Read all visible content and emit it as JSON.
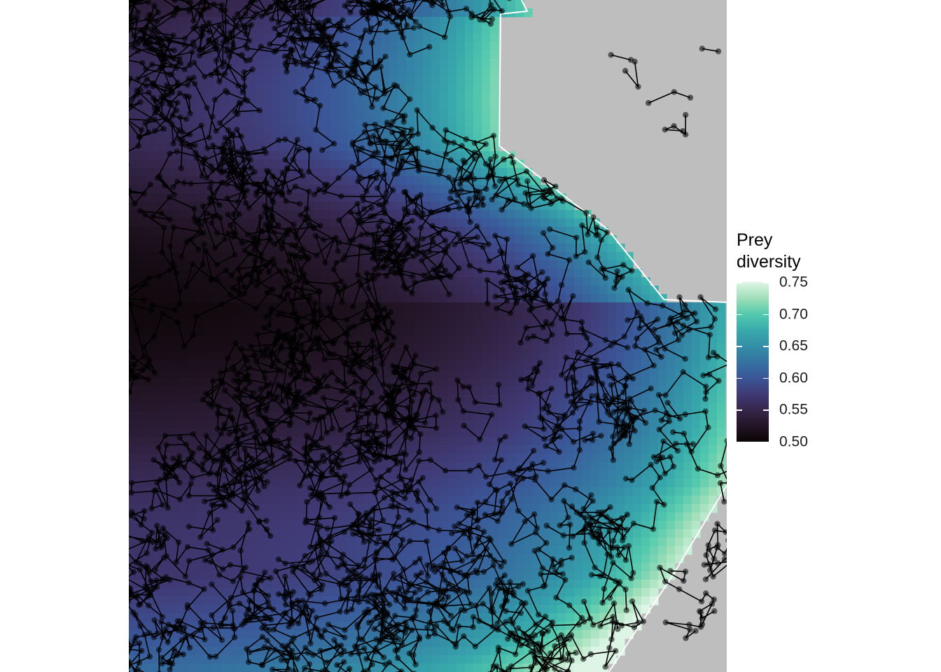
{
  "chart_data": {
    "type": "heatmap",
    "title": "",
    "xlabel": "",
    "ylabel": "",
    "description_layers": [
      "prey diversity surface",
      "movement tracks (points joined by lines)"
    ],
    "legend": {
      "title_lines": [
        "Prey",
        "diversity"
      ],
      "ticks": [
        0.5,
        0.55,
        0.6,
        0.65,
        0.7,
        0.75
      ],
      "tick_labels": [
        "0.50",
        "0.55",
        "0.60",
        "0.65",
        "0.70",
        "0.75"
      ],
      "range": [
        0.5,
        0.75
      ],
      "colormap": "mako (viridis)",
      "position": "right"
    },
    "colors": {
      "background_land": "#bebebe",
      "contour_line": "#ffffff",
      "track": "#000000"
    }
  }
}
